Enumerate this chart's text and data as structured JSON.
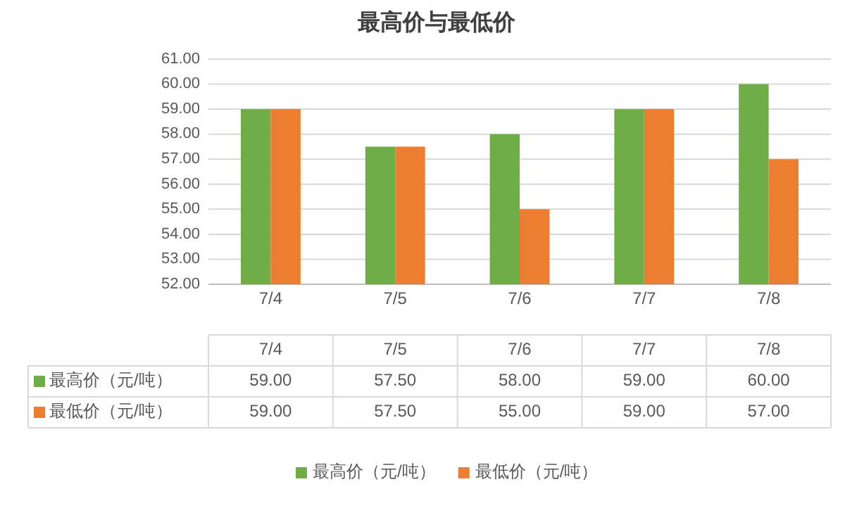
{
  "chart_data": {
    "type": "bar",
    "title": "最高价与最低价",
    "categories": [
      "7/4",
      "7/5",
      "7/6",
      "7/7",
      "7/8"
    ],
    "series": [
      {
        "name": "最高价（元/吨）",
        "color": "#70ad47",
        "values": [
          59,
          57.5,
          58,
          59,
          60
        ],
        "value_labels": [
          "59.00",
          "57.50",
          "58.00",
          "59.00",
          "60.00"
        ]
      },
      {
        "name": "最低价（元/吨）",
        "color": "#ed7d31",
        "values": [
          59,
          57.5,
          55,
          59,
          57
        ],
        "value_labels": [
          "59.00",
          "57.50",
          "55.00",
          "59.00",
          "57.00"
        ]
      }
    ],
    "ylim": [
      52,
      61
    ],
    "yticks": [
      {
        "value": 52,
        "label": "52.00"
      },
      {
        "value": 53,
        "label": "53.00"
      },
      {
        "value": 54,
        "label": "54.00"
      },
      {
        "value": 55,
        "label": "55.00"
      },
      {
        "value": 56,
        "label": "56.00"
      },
      {
        "value": 57,
        "label": "57.00"
      },
      {
        "value": 58,
        "label": "58.00"
      },
      {
        "value": 59,
        "label": "59.00"
      },
      {
        "value": 60,
        "label": "60.00"
      },
      {
        "value": 61,
        "label": "61.00"
      }
    ],
    "grid": "y",
    "legend": "bottom"
  }
}
